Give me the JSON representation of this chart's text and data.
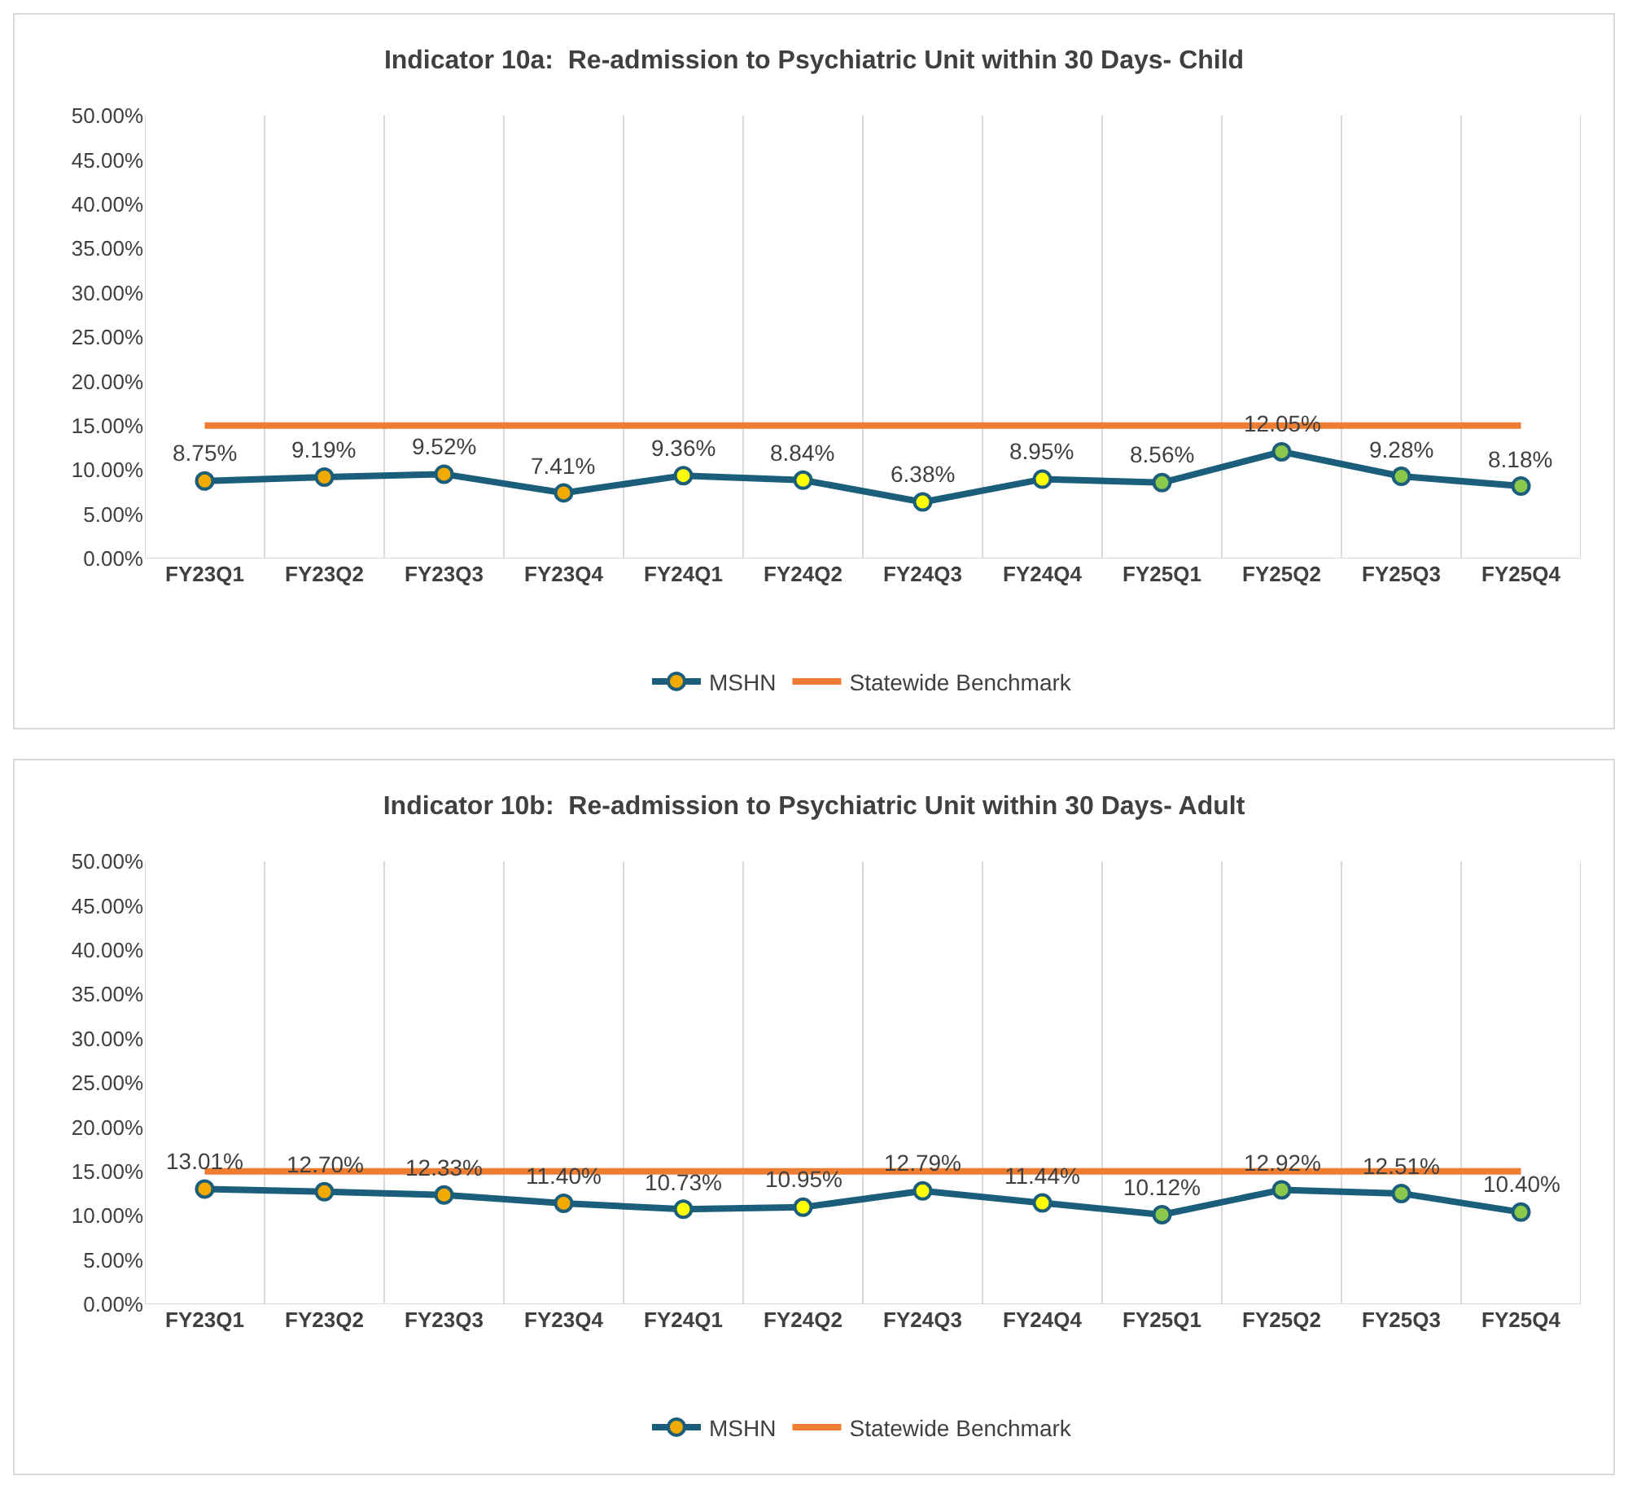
{
  "chart_data": [
    {
      "type": "line",
      "title": "Indicator 10a:  Re-admission to Psychiatric Unit within 30 Days- Child",
      "categories": [
        "FY23Q1",
        "FY23Q2",
        "FY23Q3",
        "FY23Q4",
        "FY24Q1",
        "FY24Q2",
        "FY24Q3",
        "FY24Q4",
        "FY25Q1",
        "FY25Q2",
        "FY25Q3",
        "FY25Q4"
      ],
      "series": [
        {
          "name": "MSHN",
          "color": "#1b5e7b",
          "marker": "circle",
          "colors": [
            "#f2a900",
            "#f2a900",
            "#f2a900",
            "#f2a900",
            "#ffff00",
            "#ffff00",
            "#ffff00",
            "#ffff00",
            "#8cc84b",
            "#8cc84b",
            "#8cc84b",
            "#8cc84b"
          ],
          "values": [
            8.75,
            9.19,
            9.52,
            7.41,
            9.36,
            8.84,
            6.38,
            8.95,
            8.56,
            12.05,
            9.28,
            8.18
          ],
          "value_labels": [
            "8.75%",
            "9.19%",
            "9.52%",
            "7.41%",
            "9.36%",
            "8.84%",
            "6.38%",
            "8.95%",
            "8.56%",
            "12.05%",
            "9.28%",
            "8.18%"
          ]
        },
        {
          "name": "Statewide Benchmark",
          "color": "#ed7d31",
          "marker": "none",
          "values": [
            15,
            15,
            15,
            15,
            15,
            15,
            15,
            15,
            15,
            15,
            15,
            15
          ]
        }
      ],
      "ylim": [
        0,
        50
      ],
      "yticks": [
        {
          "value": 0,
          "label": "0.00%"
        },
        {
          "value": 5,
          "label": "5.00%"
        },
        {
          "value": 10,
          "label": "10.00%"
        },
        {
          "value": 15,
          "label": "15.00%"
        },
        {
          "value": 20,
          "label": "20.00%"
        },
        {
          "value": 25,
          "label": "25.00%"
        },
        {
          "value": 30,
          "label": "30.00%"
        },
        {
          "value": 35,
          "label": "35.00%"
        },
        {
          "value": 40,
          "label": "40.00%"
        },
        {
          "value": 45,
          "label": "45.00%"
        },
        {
          "value": 50,
          "label": "50.00%"
        }
      ],
      "grid": "x",
      "legend": "bottom"
    },
    {
      "type": "line",
      "title": "Indicator 10b:  Re-admission to Psychiatric Unit within 30 Days- Adult",
      "categories": [
        "FY23Q1",
        "FY23Q2",
        "FY23Q3",
        "FY23Q4",
        "FY24Q1",
        "FY24Q2",
        "FY24Q3",
        "FY24Q4",
        "FY25Q1",
        "FY25Q2",
        "FY25Q3",
        "FY25Q4"
      ],
      "series": [
        {
          "name": "MSHN",
          "color": "#1b5e7b",
          "marker": "circle",
          "colors": [
            "#f2a900",
            "#f2a900",
            "#f2a900",
            "#f2a900",
            "#ffff00",
            "#ffff00",
            "#ffff00",
            "#ffff00",
            "#8cc84b",
            "#8cc84b",
            "#8cc84b",
            "#8cc84b"
          ],
          "values": [
            13.01,
            12.7,
            12.33,
            11.4,
            10.73,
            10.95,
            12.79,
            11.44,
            10.12,
            12.92,
            12.51,
            10.4
          ],
          "value_labels": [
            "13.01%",
            "12.70%",
            "12.33%",
            "11.40%",
            "10.73%",
            "10.95%",
            "12.79%",
            "11.44%",
            "10.12%",
            "12.92%",
            "12.51%",
            "10.40%"
          ]
        },
        {
          "name": "Statewide Benchmark",
          "color": "#ed7d31",
          "marker": "none",
          "values": [
            15,
            15,
            15,
            15,
            15,
            15,
            15,
            15,
            15,
            15,
            15,
            15
          ]
        }
      ],
      "ylim": [
        0,
        50
      ],
      "yticks": [
        {
          "value": 0,
          "label": "0.00%"
        },
        {
          "value": 5,
          "label": "5.00%"
        },
        {
          "value": 10,
          "label": "10.00%"
        },
        {
          "value": 15,
          "label": "15.00%"
        },
        {
          "value": 20,
          "label": "20.00%"
        },
        {
          "value": 25,
          "label": "25.00%"
        },
        {
          "value": 30,
          "label": "30.00%"
        },
        {
          "value": 35,
          "label": "35.00%"
        },
        {
          "value": 40,
          "label": "40.00%"
        },
        {
          "value": 45,
          "label": "45.00%"
        },
        {
          "value": 50,
          "label": "50.00%"
        }
      ],
      "grid": "x",
      "legend": "bottom"
    }
  ]
}
